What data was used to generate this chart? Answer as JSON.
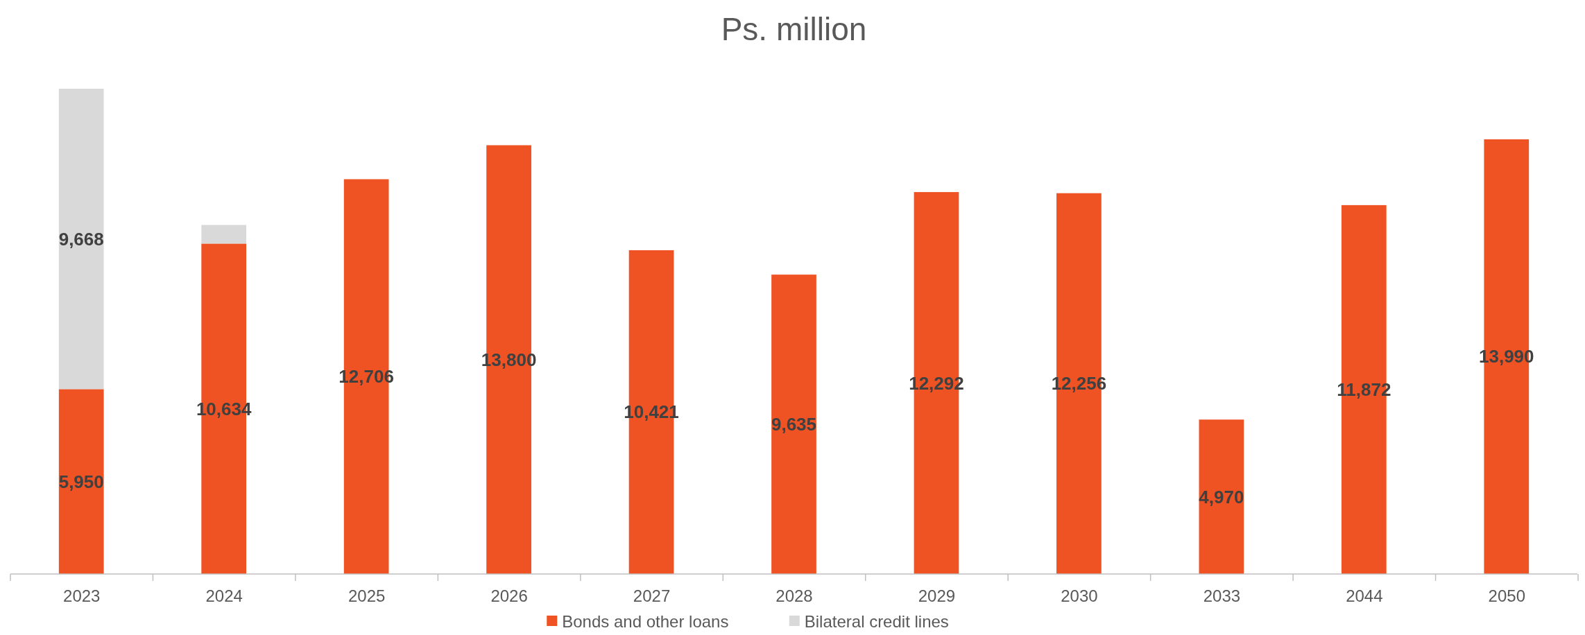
{
  "chart_data": {
    "type": "bar",
    "title": "Ps. million",
    "stacked": true,
    "legend": "bottom",
    "categories": [
      "2023",
      "2024",
      "2025",
      "2026",
      "2027",
      "2028",
      "2029",
      "2030",
      "2033",
      "2044",
      "2050"
    ],
    "series": [
      {
        "name": "Bonds and other loans",
        "color": "#f05323",
        "values": [
          5950,
          10634,
          12706,
          13800,
          10421,
          9635,
          12292,
          12256,
          4970,
          11872,
          13990
        ],
        "value_labels": [
          "5,950",
          "10,634",
          "12,706",
          "13,800",
          "10,421",
          "9,635",
          "12,292",
          "12,256",
          "4,970",
          "11,872",
          "13,990"
        ]
      },
      {
        "name": "Bilateral credit lines",
        "color": "#d9d9d9",
        "values": [
          9668,
          600,
          null,
          null,
          null,
          null,
          null,
          null,
          null,
          null,
          null
        ],
        "value_labels": [
          "9,668",
          null,
          null,
          null,
          null,
          null,
          null,
          null,
          null,
          null,
          null
        ]
      }
    ]
  }
}
